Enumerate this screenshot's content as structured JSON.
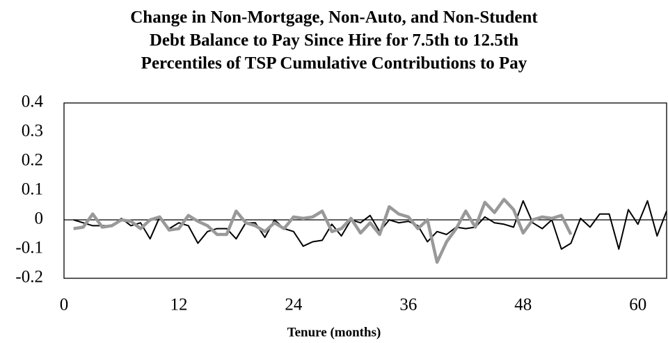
{
  "chart_data": {
    "type": "line",
    "title": [
      "Change in Non-Mortgage, Non-Auto, and Non-Student",
      "Debt Balance to Pay Since Hire for 7.5th to 12.5th",
      "Percentiles of TSP Cumulative Contributions to Pay"
    ],
    "x_label": "Tenure (months)",
    "x": [
      1,
      2,
      3,
      4,
      5,
      6,
      7,
      8,
      9,
      10,
      11,
      12,
      13,
      14,
      15,
      16,
      17,
      18,
      19,
      20,
      21,
      22,
      23,
      24,
      25,
      26,
      27,
      28,
      29,
      30,
      31,
      32,
      33,
      34,
      35,
      36,
      37,
      38,
      39,
      40,
      41,
      42,
      43,
      44,
      45,
      46,
      47,
      48,
      49,
      50,
      51,
      52,
      53,
      54,
      55,
      56,
      57,
      58,
      59,
      60,
      61,
      62,
      63
    ],
    "series": [
      {
        "color": "#000000",
        "values": [
          0,
          -0.01,
          -0.02,
          -0.02,
          -0.02,
          0.005,
          -0.02,
          -0.01,
          -0.065,
          0.01,
          -0.03,
          -0.01,
          -0.02,
          -0.08,
          -0.04,
          -0.03,
          -0.03,
          -0.065,
          -0.01,
          -0.01,
          -0.06,
          0,
          -0.03,
          -0.04,
          -0.09,
          -0.075,
          -0.07,
          -0.015,
          -0.055,
          0,
          -0.01,
          0.015,
          -0.04,
          0,
          -0.01,
          -0.005,
          -0.02,
          -0.075,
          -0.04,
          -0.05,
          -0.025,
          -0.03,
          -0.025,
          0.01,
          -0.01,
          -0.015,
          -0.025,
          0.065,
          -0.01,
          -0.03,
          0,
          -0.1,
          -0.08,
          0.005,
          -0.025,
          0.02,
          0.02,
          -0.1,
          0.035,
          -0.015,
          0.065,
          -0.055,
          0.03
        ]
      },
      {
        "color": "#999999",
        "values": [
          -0.03,
          -0.025,
          0.02,
          -0.025,
          -0.02,
          0,
          -0.005,
          -0.03,
          0,
          0.01,
          -0.035,
          -0.03,
          0.015,
          -0.005,
          -0.02,
          -0.05,
          -0.05,
          0.03,
          -0.01,
          -0.02,
          -0.04,
          -0.01,
          -0.03,
          0.01,
          0.005,
          0.01,
          0.03,
          -0.04,
          -0.03,
          0.005,
          -0.045,
          -0.01,
          -0.05,
          0.045,
          0.02,
          0.01,
          -0.03,
          0,
          -0.145,
          -0.075,
          -0.03,
          0.03,
          -0.025,
          0.06,
          0.025,
          0.07,
          0.035,
          -0.045,
          0,
          0.01,
          0.005,
          0.015,
          -0.05,
          null,
          null,
          null,
          null,
          null,
          null,
          null,
          null,
          null,
          null
        ]
      }
    ],
    "xlim": [
      0,
      63
    ],
    "xticks": [
      0,
      12,
      24,
      36,
      48,
      60
    ],
    "ylim": [
      -0.2,
      0.4
    ],
    "yticks": [
      0.4,
      0.3,
      0.2,
      0.1,
      0,
      -0.1,
      -0.2
    ]
  }
}
